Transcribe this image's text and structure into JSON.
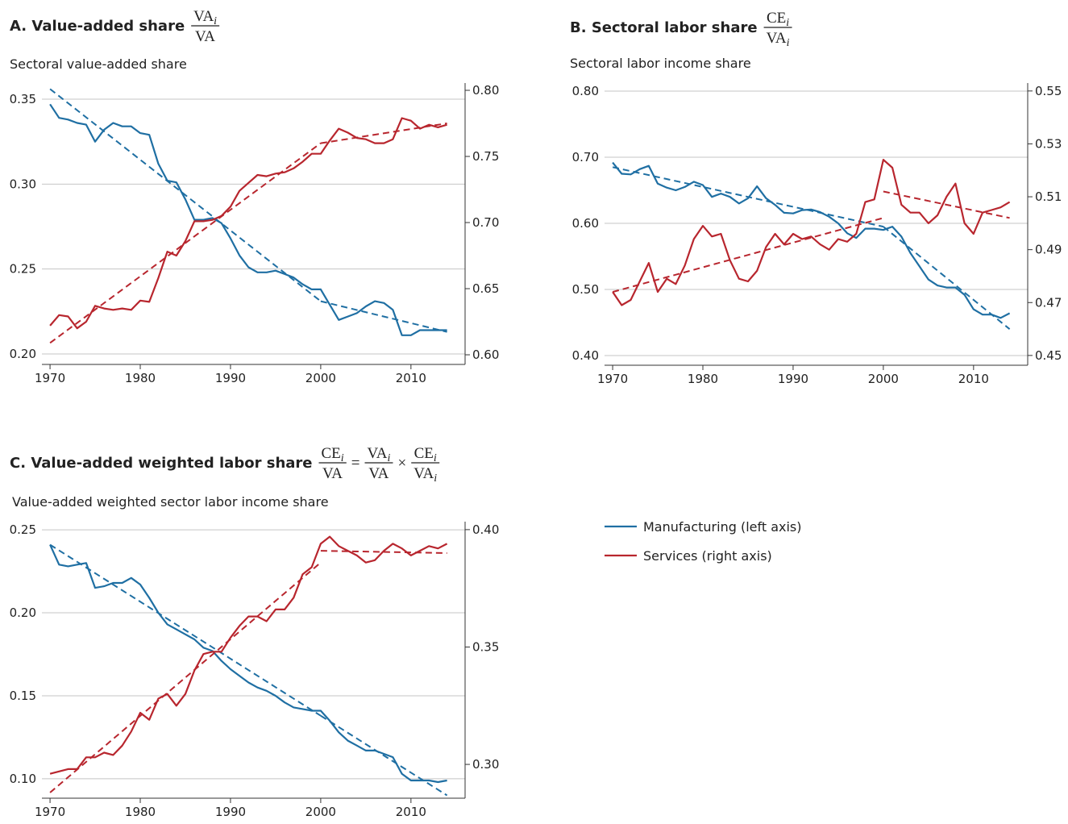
{
  "chart_data": [
    {
      "type": "line",
      "title": "A. Value-added share",
      "formula": [
        {
          "num": [
            "VA",
            "i"
          ],
          "den": [
            "VA"
          ]
        }
      ],
      "subtitle": "Sectoral value-added share",
      "x": [
        1970,
        1971,
        1972,
        1973,
        1974,
        1975,
        1976,
        1977,
        1978,
        1979,
        1980,
        1981,
        1982,
        1983,
        1984,
        1985,
        1986,
        1987,
        1988,
        1989,
        1990,
        1991,
        1992,
        1993,
        1994,
        1995,
        1996,
        1997,
        1998,
        1999,
        2000,
        2001,
        2002,
        2003,
        2004,
        2005,
        2006,
        2007,
        2008,
        2009,
        2010,
        2011,
        2012,
        2013,
        2014
      ],
      "xlim": [
        1969.1,
        2016
      ],
      "xticks": [
        1970,
        1980,
        1990,
        2000,
        2010
      ],
      "ylim": [
        0.1938,
        0.3595
      ],
      "yticks": [
        {
          "value": 0.2,
          "label": "0.20"
        },
        0.25,
        {
          "value": 0.3,
          "label": "0.30"
        },
        0.35
      ],
      "y2lim": [
        0.5927,
        0.8055
      ],
      "y2ticks": [
        {
          "value": 0.6,
          "label": "0.60"
        },
        0.65,
        {
          "value": 0.7,
          "label": "0.70"
        },
        0.75,
        {
          "value": 0.8,
          "label": "0.80"
        }
      ],
      "grid": true,
      "series": [
        {
          "name": "Manufacturing (left axis)",
          "color": "#1f6fa3",
          "axis": "y",
          "values": [
            0.347,
            0.339,
            0.338,
            0.336,
            0.335,
            0.325,
            0.332,
            0.336,
            0.334,
            0.334,
            0.33,
            0.329,
            0.312,
            0.302,
            0.301,
            0.291,
            0.279,
            0.279,
            0.28,
            0.277,
            0.268,
            0.258,
            0.251,
            0.248,
            0.248,
            0.249,
            0.247,
            0.245,
            0.241,
            0.238,
            0.238,
            0.229,
            0.22,
            0.222,
            0.224,
            0.228,
            0.231,
            0.23,
            0.226,
            0.211,
            0.211,
            0.214,
            0.214,
            0.214,
            0.214
          ],
          "trend": [
            {
              "x": [
                1970,
                2000
              ],
              "values": [
                0.356,
                0.231
              ]
            },
            {
              "x": [
                2000,
                2014
              ],
              "values": [
                0.231,
                0.213
              ]
            }
          ]
        },
        {
          "name": "Services (right axis)",
          "color": "#b8262e",
          "axis": "y2",
          "values": [
            0.622,
            0.63,
            0.629,
            0.62,
            0.625,
            0.637,
            0.635,
            0.634,
            0.635,
            0.634,
            0.641,
            0.64,
            0.658,
            0.678,
            0.675,
            0.686,
            0.701,
            0.701,
            0.702,
            0.705,
            0.712,
            0.724,
            0.73,
            0.736,
            0.735,
            0.737,
            0.738,
            0.741,
            0.746,
            0.752,
            0.752,
            0.762,
            0.771,
            0.768,
            0.764,
            0.763,
            0.76,
            0.76,
            0.763,
            0.779,
            0.777,
            0.771,
            0.774,
            0.772,
            0.774
          ],
          "trend": [
            {
              "x": [
                1970,
                2000
              ],
              "values": [
                0.609,
                0.76
              ]
            },
            {
              "x": [
                2000,
                2014
              ],
              "values": [
                0.76,
                0.775
              ]
            }
          ]
        }
      ]
    },
    {
      "type": "line",
      "title": "B. Sectoral labor share",
      "formula": [
        {
          "num": [
            "CE",
            "i"
          ],
          "den": [
            "VA",
            "i"
          ]
        }
      ],
      "subtitle": "Sectoral labor income share",
      "x": [
        1970,
        1971,
        1972,
        1973,
        1974,
        1975,
        1976,
        1977,
        1978,
        1979,
        1980,
        1981,
        1982,
        1983,
        1984,
        1985,
        1986,
        1987,
        1988,
        1989,
        1990,
        1991,
        1992,
        1993,
        1994,
        1995,
        1996,
        1997,
        1998,
        1999,
        2000,
        2001,
        2002,
        2003,
        2004,
        2005,
        2006,
        2007,
        2008,
        2009,
        2010,
        2011,
        2012,
        2013,
        2014
      ],
      "xlim": [
        1969.1,
        2016
      ],
      "xticks": [
        1970,
        1980,
        1990,
        2000,
        2010
      ],
      "ylim": [
        0.3854,
        0.8122
      ],
      "yticks": [
        {
          "value": 0.4,
          "label": "0.40"
        },
        {
          "value": 0.5,
          "label": "0.50"
        },
        {
          "value": 0.6,
          "label": "0.60"
        },
        {
          "value": 0.7,
          "label": "0.70"
        },
        {
          "value": 0.8,
          "label": "0.80"
        }
      ],
      "y2lim": [
        0.4463,
        0.553
      ],
      "y2ticks": [
        0.45,
        0.47,
        0.49,
        0.51,
        0.53,
        0.55
      ],
      "grid": true,
      "series": [
        {
          "color": "#1f6fa3",
          "axis": "y",
          "values": [
            0.692,
            0.675,
            0.674,
            0.682,
            0.687,
            0.66,
            0.654,
            0.65,
            0.655,
            0.663,
            0.658,
            0.64,
            0.645,
            0.64,
            0.63,
            0.638,
            0.656,
            0.638,
            0.628,
            0.616,
            0.615,
            0.62,
            0.621,
            0.617,
            0.61,
            0.6,
            0.585,
            0.578,
            0.592,
            0.592,
            0.59,
            0.595,
            0.58,
            0.555,
            0.535,
            0.515,
            0.506,
            0.503,
            0.503,
            0.492,
            0.47,
            0.462,
            0.462,
            0.457,
            0.464
          ],
          "trend": [
            {
              "x": [
                1970,
                2000
              ],
              "values": [
                0.685,
                0.595
              ]
            },
            {
              "x": [
                2000,
                2014
              ],
              "values": [
                0.595,
                0.44
              ]
            }
          ]
        },
        {
          "color": "#b8262e",
          "axis": "y2",
          "values": [
            0.474,
            0.469,
            0.471,
            0.478,
            0.485,
            0.474,
            0.479,
            0.477,
            0.484,
            0.494,
            0.499,
            0.495,
            0.496,
            0.486,
            0.479,
            0.478,
            0.482,
            0.491,
            0.496,
            0.492,
            0.496,
            0.494,
            0.495,
            0.492,
            0.49,
            0.494,
            0.493,
            0.496,
            0.508,
            0.509,
            0.524,
            0.521,
            0.507,
            0.504,
            0.504,
            0.5,
            0.503,
            0.51,
            0.515,
            0.5,
            0.496,
            0.504,
            0.505,
            0.506,
            0.508
          ],
          "trend": [
            {
              "x": [
                1970,
                2000
              ],
              "values": [
                0.474,
                0.502
              ]
            },
            {
              "x": [
                2000,
                2014
              ],
              "values": [
                0.512,
                0.502
              ]
            }
          ]
        }
      ]
    },
    {
      "type": "line",
      "title": "C. Value-added weighted labor share",
      "formula": [
        {
          "num": [
            "CE",
            "i"
          ],
          "den": [
            "VA"
          ]
        },
        "=",
        {
          "num": [
            "VA",
            "i"
          ],
          "den": [
            "VA"
          ]
        },
        "×",
        {
          "num": [
            "CE",
            "i"
          ],
          "den": [
            "VA",
            "i"
          ]
        }
      ],
      "subtitle": "Value-added weighted sector labor income share",
      "x": [
        1970,
        1971,
        1972,
        1973,
        1974,
        1975,
        1976,
        1977,
        1978,
        1979,
        1980,
        1981,
        1982,
        1983,
        1984,
        1985,
        1986,
        1987,
        1988,
        1989,
        1990,
        1991,
        1992,
        1993,
        1994,
        1995,
        1996,
        1997,
        1998,
        1999,
        2000,
        2001,
        2002,
        2003,
        2004,
        2005,
        2006,
        2007,
        2008,
        2009,
        2010,
        2011,
        2012,
        2013,
        2014
      ],
      "xlim": [
        1969.1,
        2016
      ],
      "xticks": [
        1970,
        1980,
        1990,
        2000,
        2010
      ],
      "ylim": [
        0.0883,
        0.2549
      ],
      "yticks": [
        {
          "value": 0.1,
          "label": "0.10"
        },
        0.15,
        {
          "value": 0.2,
          "label": "0.20"
        },
        0.25
      ],
      "y2lim": [
        0.2856,
        0.4034
      ],
      "y2ticks": [
        {
          "value": 0.3,
          "label": "0.30"
        },
        0.35,
        {
          "value": 0.4,
          "label": "0.40"
        }
      ],
      "grid": true,
      "series": [
        {
          "color": "#1f6fa3",
          "axis": "y",
          "values": [
            0.241,
            0.229,
            0.228,
            0.229,
            0.23,
            0.215,
            0.216,
            0.218,
            0.218,
            0.221,
            0.217,
            0.209,
            0.2,
            0.193,
            0.19,
            0.187,
            0.184,
            0.179,
            0.177,
            0.171,
            0.166,
            0.162,
            0.158,
            0.155,
            0.153,
            0.15,
            0.146,
            0.143,
            0.142,
            0.141,
            0.141,
            0.135,
            0.128,
            0.123,
            0.12,
            0.117,
            0.117,
            0.115,
            0.113,
            0.103,
            0.099,
            0.099,
            0.099,
            0.098,
            0.099
          ],
          "trend": [
            {
              "x": [
                1970,
                2000
              ],
              "values": [
                0.241,
                0.138
              ]
            },
            {
              "x": [
                2000,
                2014
              ],
              "values": [
                0.138,
                0.09
              ]
            }
          ]
        },
        {
          "color": "#b8262e",
          "axis": "y2",
          "values": [
            0.296,
            0.297,
            0.298,
            0.298,
            0.303,
            0.303,
            0.305,
            0.304,
            0.308,
            0.314,
            0.322,
            0.319,
            0.328,
            0.33,
            0.325,
            0.33,
            0.34,
            0.347,
            0.348,
            0.348,
            0.354,
            0.359,
            0.363,
            0.363,
            0.361,
            0.366,
            0.366,
            0.371,
            0.381,
            0.384,
            0.394,
            0.397,
            0.393,
            0.391,
            0.389,
            0.386,
            0.387,
            0.391,
            0.394,
            0.392,
            0.389,
            0.391,
            0.393,
            0.392,
            0.394
          ],
          "trend": [
            {
              "x": [
                1970,
                2000
              ],
              "values": [
                0.288,
                0.386
              ]
            },
            {
              "x": [
                2000,
                2014
              ],
              "values": [
                0.391,
                0.39
              ]
            }
          ]
        }
      ]
    }
  ]
}
